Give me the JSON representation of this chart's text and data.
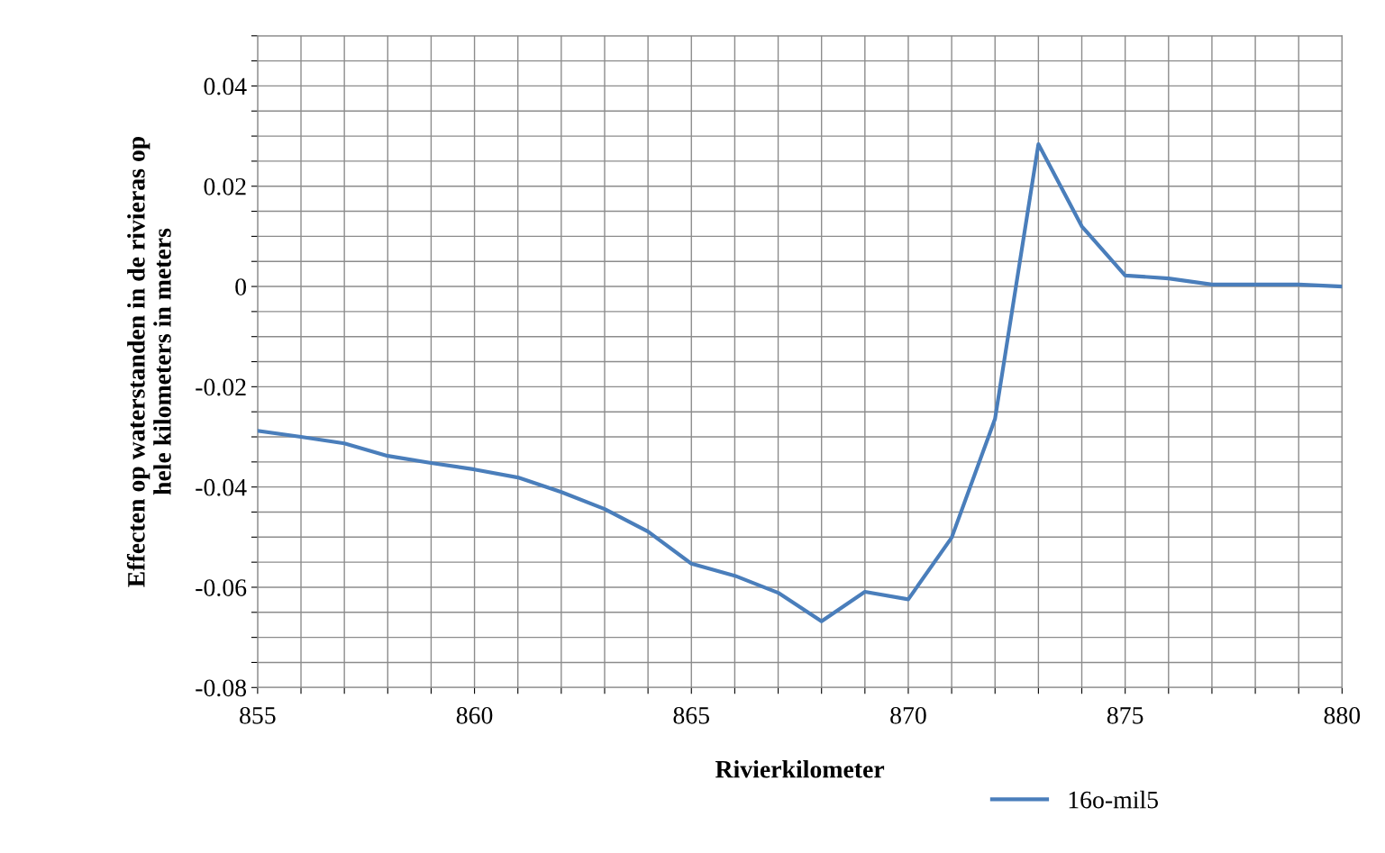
{
  "chart_data": {
    "type": "line",
    "xlabel": "Rivierkilometer",
    "ylabel": "Effecten op waterstanden in de rivieras op\nhele kilometers in meters",
    "x": [
      855,
      856,
      857,
      858,
      859,
      860,
      861,
      862,
      863,
      864,
      865,
      866,
      867,
      868,
      869,
      870,
      871,
      872,
      873,
      874,
      875,
      876,
      877,
      878,
      879,
      880
    ],
    "series": [
      {
        "name": "16o-mil5",
        "color": "#4a7ebb",
        "values": [
          -0.0288,
          -0.03,
          -0.0313,
          -0.0338,
          -0.0352,
          -0.0365,
          -0.0381,
          -0.041,
          -0.0444,
          -0.0489,
          -0.0553,
          -0.0577,
          -0.0611,
          -0.0668,
          -0.0609,
          -0.0624,
          -0.0501,
          -0.0264,
          0.0284,
          0.012,
          0.0022,
          0.0016,
          0.0004,
          0.0004,
          0.0004,
          0.0
        ]
      }
    ],
    "xlim": [
      855,
      880
    ],
    "ylim": [
      -0.08,
      0.05
    ],
    "xticks": [
      855,
      {
        "value": 856,
        "label": null
      },
      {
        "value": 857,
        "label": null
      },
      {
        "value": 858,
        "label": null
      },
      {
        "value": 859,
        "label": null
      },
      860,
      {
        "value": 861,
        "label": null
      },
      {
        "value": 862,
        "label": null
      },
      {
        "value": 863,
        "label": null
      },
      {
        "value": 864,
        "label": null
      },
      865,
      {
        "value": 866,
        "label": null
      },
      {
        "value": 867,
        "label": null
      },
      {
        "value": 868,
        "label": null
      },
      {
        "value": 869,
        "label": null
      },
      870,
      {
        "value": 871,
        "label": null
      },
      {
        "value": 872,
        "label": null
      },
      {
        "value": 873,
        "label": null
      },
      {
        "value": 874,
        "label": null
      },
      875,
      {
        "value": 876,
        "label": null
      },
      {
        "value": 877,
        "label": null
      },
      {
        "value": 878,
        "label": null
      },
      {
        "value": 879,
        "label": null
      },
      880
    ],
    "yticks": [
      {
        "value": -0.08,
        "label": "-0.08"
      },
      {
        "value": -0.075,
        "label": null
      },
      {
        "value": -0.07,
        "label": null
      },
      {
        "value": -0.065,
        "label": null
      },
      {
        "value": -0.06,
        "label": "-0.06"
      },
      {
        "value": -0.055,
        "label": null
      },
      {
        "value": -0.05,
        "label": null
      },
      {
        "value": -0.045,
        "label": null
      },
      {
        "value": -0.04,
        "label": "-0.04"
      },
      {
        "value": -0.035,
        "label": null
      },
      {
        "value": -0.03,
        "label": null
      },
      {
        "value": -0.025,
        "label": null
      },
      {
        "value": -0.02,
        "label": "-0.02"
      },
      {
        "value": -0.015,
        "label": null
      },
      {
        "value": -0.01,
        "label": null
      },
      {
        "value": -0.005,
        "label": null
      },
      {
        "value": 0,
        "label": "0"
      },
      {
        "value": 0.005,
        "label": null
      },
      {
        "value": 0.01,
        "label": null
      },
      {
        "value": 0.015,
        "label": null
      },
      {
        "value": 0.02,
        "label": "0.02"
      },
      {
        "value": 0.025,
        "label": null
      },
      {
        "value": 0.03,
        "label": null
      },
      {
        "value": 0.035,
        "label": null
      },
      {
        "value": 0.04,
        "label": "0.04"
      },
      {
        "value": 0.045,
        "label": null
      },
      {
        "value": 0.05,
        "label": null
      }
    ],
    "grid": true,
    "legend": "bottom right",
    "marker": "none",
    "line_style": "solid"
  }
}
